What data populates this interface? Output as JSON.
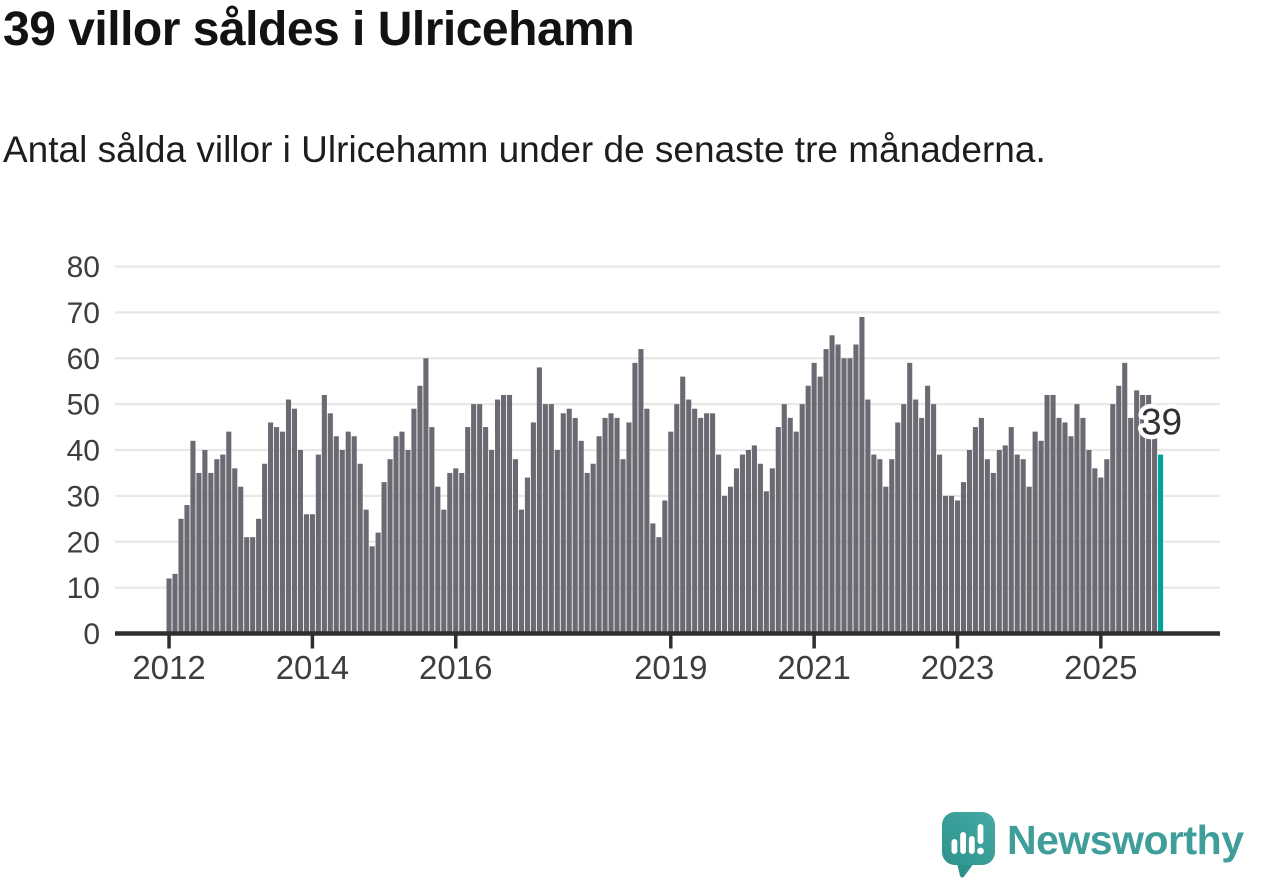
{
  "title": "39 villor såldes i Ulricehamn",
  "subtitle": "Antal sålda villor i Ulricehamn under de senaste tre månaderna.",
  "footer": {
    "brand": "Newsworthy"
  },
  "colors": {
    "bar": "#6a6a72",
    "highlight": "#00a29b",
    "gridline": "#e8e8e8",
    "axis": "#2e2e2e",
    "axis_text": "#3d3d42",
    "title_text": "#121212",
    "subtitle_text": "#1d1d1d",
    "brand_teal": "#3f9e9a",
    "annotation_text": "#2f2f34",
    "annotation_halo": "#ffffff"
  },
  "chart_data": {
    "type": "bar",
    "title": "39 villor såldes i Ulricehamn",
    "subtitle": "Antal sålda villor i Ulricehamn under de senaste tre månaderna.",
    "xlabel": "",
    "ylabel": "",
    "x_unit": "month",
    "start": "2012-01",
    "ylim": [
      0,
      80
    ],
    "grid": true,
    "y_ticks": [
      0,
      10,
      20,
      30,
      40,
      50,
      60,
      70,
      80
    ],
    "x_ticks": [
      {
        "label": "2012",
        "month_index": 0
      },
      {
        "label": "2014",
        "month_index": 24
      },
      {
        "label": "2016",
        "month_index": 48
      },
      {
        "label": "2019",
        "month_index": 84
      },
      {
        "label": "2021",
        "month_index": 108
      },
      {
        "label": "2023",
        "month_index": 132
      },
      {
        "label": "2025",
        "month_index": 156
      }
    ],
    "values": [
      12,
      13,
      25,
      28,
      42,
      35,
      40,
      35,
      38,
      39,
      44,
      36,
      32,
      21,
      21,
      25,
      37,
      46,
      45,
      44,
      51,
      49,
      40,
      26,
      26,
      39,
      52,
      48,
      43,
      40,
      44,
      43,
      37,
      27,
      19,
      22,
      33,
      38,
      43,
      44,
      40,
      49,
      54,
      60,
      45,
      32,
      27,
      35,
      36,
      35,
      45,
      50,
      50,
      45,
      40,
      51,
      52,
      52,
      38,
      27,
      34,
      46,
      58,
      50,
      50,
      40,
      48,
      49,
      47,
      42,
      35,
      37,
      43,
      47,
      48,
      47,
      38,
      46,
      59,
      62,
      49,
      24,
      21,
      29,
      44,
      50,
      56,
      51,
      49,
      47,
      48,
      48,
      39,
      30,
      32,
      36,
      39,
      40,
      41,
      37,
      31,
      36,
      45,
      50,
      47,
      44,
      50,
      54,
      59,
      56,
      62,
      65,
      63,
      60,
      60,
      63,
      69,
      51,
      39,
      38,
      32,
      38,
      46,
      50,
      59,
      51,
      47,
      54,
      50,
      39,
      30,
      30,
      29,
      33,
      40,
      45,
      47,
      38,
      35,
      40,
      41,
      45,
      39,
      38,
      32,
      44,
      42,
      52,
      52,
      47,
      46,
      43,
      50,
      47,
      40,
      36,
      34,
      38,
      50,
      54,
      59,
      47,
      53,
      52,
      52,
      44,
      39
    ],
    "highlight": {
      "index": 166,
      "value": 39,
      "label": "39",
      "color": "#00a29b"
    }
  }
}
